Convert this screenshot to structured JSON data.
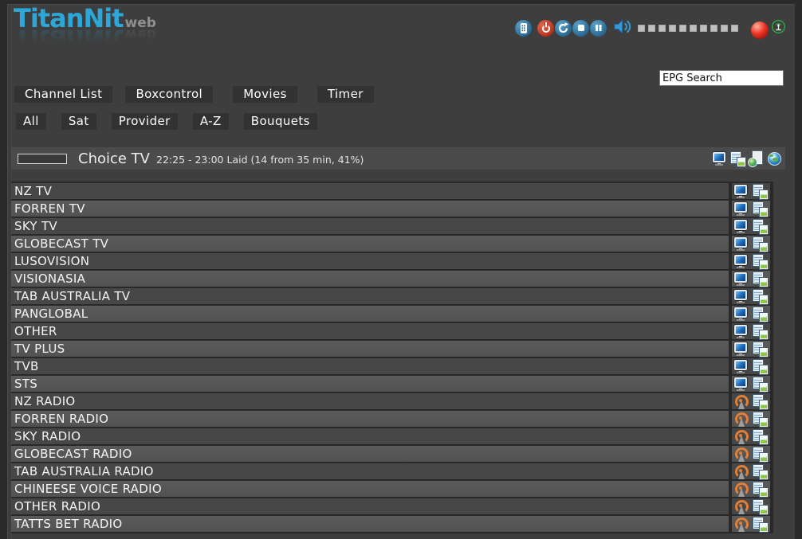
{
  "logo": {
    "title": "TitanNit",
    "suffix": "web"
  },
  "toolbar": {
    "icons": [
      {
        "name": "remote-control"
      },
      {
        "name": "power"
      },
      {
        "name": "reload"
      },
      {
        "name": "stop"
      },
      {
        "name": "pause"
      }
    ],
    "volume_icon": "speaker",
    "volume_segments": 10,
    "record_indicator": "red-ball",
    "signal_icon": "transmitter",
    "colors": {
      "button_blue": "#2c6d96",
      "button_red": "#bf3a22",
      "record_red": "#ee3322",
      "signal_green": "#2f9e3f"
    }
  },
  "search": {
    "value": "EPG Search"
  },
  "nav": {
    "items": [
      "Channel List",
      "Boxcontrol",
      "Movies",
      "Timer"
    ]
  },
  "filters": {
    "items": [
      "All",
      "Sat",
      "Provider",
      "A-Z",
      "Bouquets"
    ]
  },
  "now_playing": {
    "channel": "Choice TV",
    "details": "22:25 - 23:00 Laid (14 from 35 min, 41%)",
    "progress_percent": 41,
    "progress_color": "#e5780f",
    "action_icons": [
      "screen",
      "epg-list",
      "web-epg",
      "web-stream"
    ]
  },
  "channel_list": {
    "channels": [
      {
        "name": "NZ TV",
        "type": "tv"
      },
      {
        "name": "FORREN TV",
        "type": "tv"
      },
      {
        "name": "SKY TV",
        "type": "tv"
      },
      {
        "name": "GLOBECAST TV",
        "type": "tv"
      },
      {
        "name": "LUSOVISION",
        "type": "tv"
      },
      {
        "name": "VISIONASIA",
        "type": "tv"
      },
      {
        "name": "TAB AUSTRALIA TV",
        "type": "tv"
      },
      {
        "name": "PANGLOBAL",
        "type": "tv"
      },
      {
        "name": "OTHER",
        "type": "tv"
      },
      {
        "name": "TV PLUS",
        "type": "tv"
      },
      {
        "name": "TVB",
        "type": "tv"
      },
      {
        "name": "STS",
        "type": "tv"
      },
      {
        "name": "NZ RADIO",
        "type": "radio"
      },
      {
        "name": "FORREN RADIO",
        "type": "radio"
      },
      {
        "name": "SKY RADIO",
        "type": "radio"
      },
      {
        "name": "GLOBECAST RADIO",
        "type": "radio"
      },
      {
        "name": "TAB AUSTRALIA RADIO",
        "type": "radio"
      },
      {
        "name": "CHINEESE VOICE RADIO",
        "type": "radio"
      },
      {
        "name": "OTHER RADIO",
        "type": "radio"
      },
      {
        "name": "TATTS BET RADIO",
        "type": "radio"
      }
    ]
  }
}
